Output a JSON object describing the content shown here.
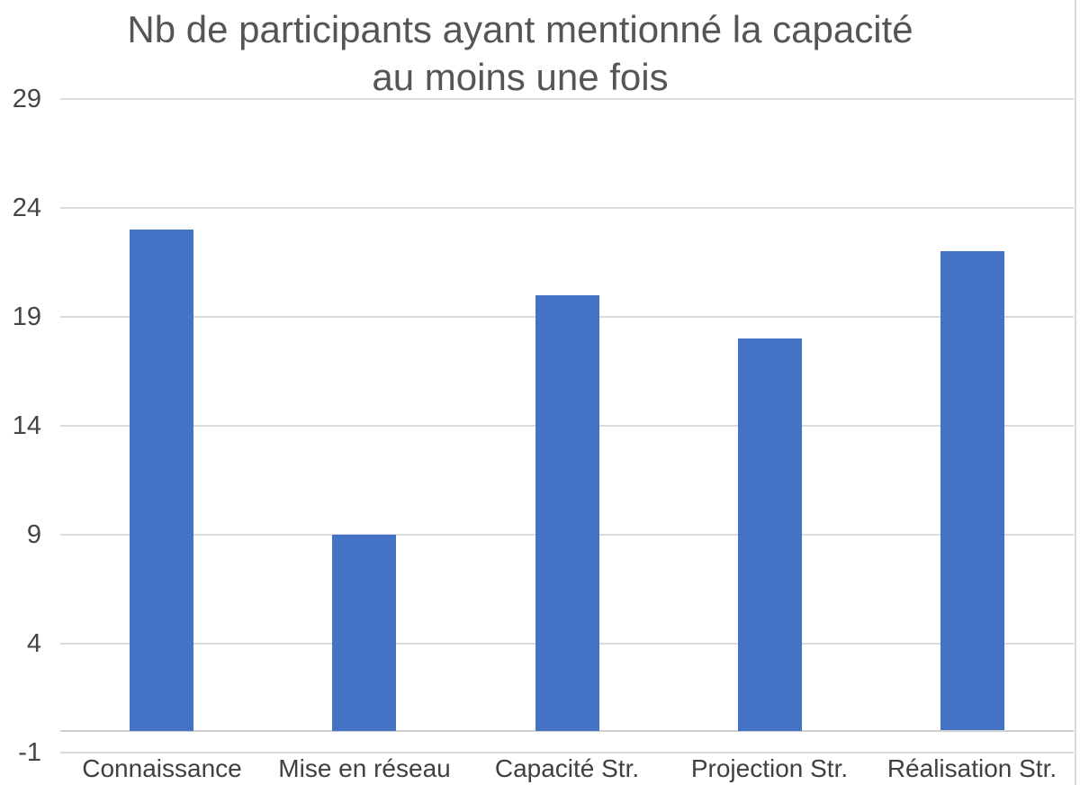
{
  "chart_data": {
    "type": "bar",
    "title": "Nb de participants ayant mentionné la capacité au moins une fois",
    "title_lines": [
      "Nb de participants ayant mentionné la capacité",
      "au moins une fois"
    ],
    "categories": [
      "Connaissance",
      "Mise en réseau",
      "Capacité Str.",
      "Projection Str.",
      "Réalisation Str."
    ],
    "values": [
      23,
      9,
      20,
      18,
      22
    ],
    "xlabel": "",
    "ylabel": "",
    "ylim": [
      -1,
      29
    ],
    "yticks": [
      29,
      24,
      19,
      14,
      9,
      4,
      -1
    ],
    "bar_baseline": 0,
    "grid": true,
    "legend": "none",
    "colors": {
      "bar": "#4472C4",
      "gridline": "#DBDBDB",
      "zero_line": "#D0D0D0",
      "title_text": "#555555",
      "axis_text": "#454545",
      "chart_border": "#D9D9D9"
    }
  }
}
